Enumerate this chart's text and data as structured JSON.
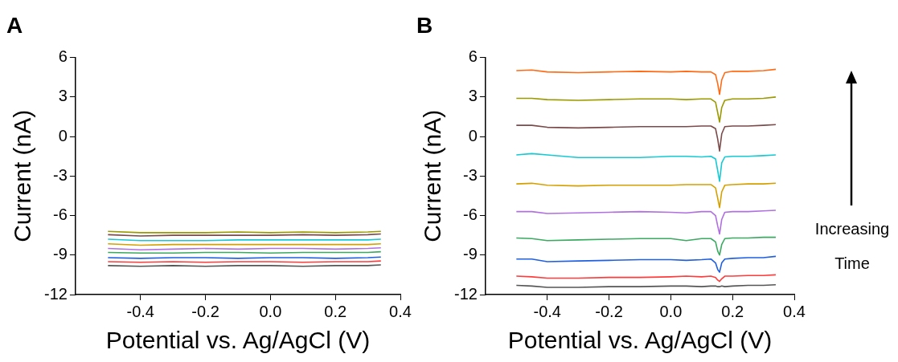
{
  "chart_data": [
    {
      "type": "line",
      "title": "A",
      "xlabel": "Potential vs. Ag/AgCl (V)",
      "ylabel": "Current (nA)",
      "xlim": [
        -0.6,
        0.4
      ],
      "xticks": [
        -0.4,
        -0.2,
        {
          "value": 0,
          "label": "0.0"
        },
        0.2,
        0.4
      ],
      "ylim": [
        -12,
        6
      ],
      "yticks": [
        -12,
        -9,
        -6,
        -3,
        0,
        3,
        6
      ],
      "grid": false,
      "legend": false,
      "marker": "none",
      "line_style": "solid",
      "x": [
        -0.5,
        -0.4,
        -0.3,
        -0.2,
        -0.1,
        0,
        0.1,
        0.2,
        0.3,
        0.34
      ],
      "series": [
        {
          "color": "#555555",
          "values": [
            -9.8,
            -9.85,
            -9.8,
            -9.85,
            -9.8,
            -9.8,
            -9.85,
            -9.8,
            -9.8,
            -9.75
          ]
        },
        {
          "color": "#ff3b3b",
          "values": [
            -9.5,
            -9.55,
            -9.5,
            -9.55,
            -9.5,
            -9.5,
            -9.55,
            -9.5,
            -9.5,
            -9.45
          ]
        },
        {
          "color": "#1f5fe0",
          "values": [
            -9.2,
            -9.25,
            -9.2,
            -9.2,
            -9.25,
            -9.2,
            -9.2,
            -9.25,
            -9.2,
            -9.15
          ]
        },
        {
          "color": "#3aaa60",
          "values": [
            -8.8,
            -8.85,
            -8.85,
            -8.8,
            -8.8,
            -8.85,
            -8.8,
            -8.8,
            -8.8,
            -8.75
          ]
        },
        {
          "color": "#b070e0",
          "values": [
            -8.5,
            -8.6,
            -8.55,
            -8.5,
            -8.55,
            -8.5,
            -8.5,
            -8.55,
            -8.5,
            -8.45
          ]
        },
        {
          "color": "#d4a000",
          "values": [
            -8.15,
            -8.25,
            -8.2,
            -8.2,
            -8.2,
            -8.2,
            -8.2,
            -8.2,
            -8.2,
            -8.15
          ]
        },
        {
          "color": "#17c9d3",
          "values": [
            -7.8,
            -7.9,
            -7.9,
            -7.9,
            -7.85,
            -7.85,
            -7.85,
            -7.85,
            -7.85,
            -7.8
          ]
        },
        {
          "color": "#7b4a4a",
          "values": [
            -7.45,
            -7.55,
            -7.5,
            -7.5,
            -7.5,
            -7.5,
            -7.45,
            -7.5,
            -7.45,
            -7.4
          ]
        },
        {
          "color": "#9a9a00",
          "values": [
            -7.2,
            -7.3,
            -7.3,
            -7.3,
            -7.25,
            -7.3,
            -7.25,
            -7.3,
            -7.25,
            -7.2
          ]
        }
      ]
    },
    {
      "type": "line",
      "title": "B",
      "xlabel": "Potential vs. Ag/AgCl (V)",
      "ylabel": "Current (nA)",
      "xlim": [
        -0.6,
        0.4
      ],
      "xticks": [
        -0.4,
        -0.2,
        {
          "value": 0,
          "label": "0.0"
        },
        0.2,
        0.4
      ],
      "ylim": [
        -12,
        6
      ],
      "yticks": [
        -12,
        -9,
        -6,
        -3,
        0,
        3,
        6
      ],
      "grid": false,
      "legend": false,
      "marker": "none",
      "line_style": "solid",
      "annotations": [
        "Increasing Time"
      ],
      "x": [
        -0.5,
        -0.45,
        -0.4,
        -0.3,
        -0.2,
        -0.1,
        0,
        0.05,
        0.1,
        0.13,
        0.145,
        0.152,
        0.158,
        0.165,
        0.175,
        0.2,
        0.25,
        0.3,
        0.34
      ],
      "series": [
        {
          "color": "#555555",
          "values": [
            -11.3,
            -11.35,
            -11.45,
            -11.45,
            -11.4,
            -11.4,
            -11.35,
            -11.35,
            -11.4,
            -11.35,
            -11.35,
            -11.4,
            -11.4,
            -11.35,
            -11.4,
            -11.35,
            -11.3,
            -11.3,
            -11.25
          ]
        },
        {
          "color": "#ff3b3b",
          "values": [
            -10.6,
            -10.65,
            -10.75,
            -10.75,
            -10.7,
            -10.7,
            -10.65,
            -10.6,
            -10.65,
            -10.6,
            -10.7,
            -10.9,
            -11.0,
            -10.8,
            -10.6,
            -10.6,
            -10.55,
            -10.55,
            -10.5
          ]
        },
        {
          "color": "#1f5fe0",
          "values": [
            -9.3,
            -9.3,
            -9.5,
            -9.45,
            -9.4,
            -9.35,
            -9.35,
            -9.4,
            -9.35,
            -9.3,
            -9.6,
            -10.1,
            -10.3,
            -9.6,
            -9.3,
            -9.25,
            -9.2,
            -9.2,
            -9.1
          ]
        },
        {
          "color": "#3aaa60",
          "values": [
            -7.7,
            -7.75,
            -7.9,
            -7.85,
            -7.8,
            -7.75,
            -7.75,
            -7.9,
            -7.75,
            -7.75,
            -8.0,
            -8.7,
            -9.0,
            -8.2,
            -7.75,
            -7.7,
            -7.7,
            -7.65,
            -7.65
          ]
        },
        {
          "color": "#b070e0",
          "values": [
            -5.7,
            -5.7,
            -5.85,
            -5.8,
            -5.75,
            -5.7,
            -5.75,
            -5.8,
            -5.7,
            -5.7,
            -6.0,
            -6.8,
            -7.4,
            -6.3,
            -5.75,
            -5.7,
            -5.7,
            -5.65,
            -5.6
          ]
        },
        {
          "color": "#d4a000",
          "values": [
            -3.6,
            -3.55,
            -3.7,
            -3.75,
            -3.7,
            -3.7,
            -3.7,
            -3.65,
            -3.65,
            -3.65,
            -3.9,
            -4.7,
            -5.4,
            -4.2,
            -3.7,
            -3.65,
            -3.6,
            -3.6,
            -3.55
          ]
        },
        {
          "color": "#17c9d3",
          "values": [
            -1.4,
            -1.3,
            -1.4,
            -1.6,
            -1.6,
            -1.6,
            -1.5,
            -1.5,
            -1.55,
            -1.5,
            -1.7,
            -2.6,
            -3.4,
            -2.0,
            -1.55,
            -1.5,
            -1.5,
            -1.45,
            -1.4
          ]
        },
        {
          "color": "#7b4a4a",
          "values": [
            0.85,
            0.85,
            0.7,
            0.65,
            0.7,
            0.75,
            0.75,
            0.75,
            0.8,
            0.8,
            0.6,
            -0.2,
            -1.1,
            0.2,
            0.75,
            0.8,
            0.8,
            0.85,
            0.9
          ]
        },
        {
          "color": "#9a9a00",
          "values": [
            2.9,
            2.9,
            2.8,
            2.75,
            2.8,
            2.85,
            2.85,
            2.8,
            2.85,
            2.85,
            2.6,
            1.8,
            1.1,
            2.2,
            2.75,
            2.85,
            2.85,
            2.9,
            3.0
          ]
        },
        {
          "color": "#ff6a13",
          "values": [
            5.0,
            5.05,
            4.9,
            4.85,
            4.9,
            4.95,
            4.9,
            4.95,
            4.9,
            4.9,
            4.7,
            4.0,
            3.2,
            4.3,
            4.85,
            4.95,
            4.95,
            5.0,
            5.1
          ]
        }
      ]
    }
  ]
}
